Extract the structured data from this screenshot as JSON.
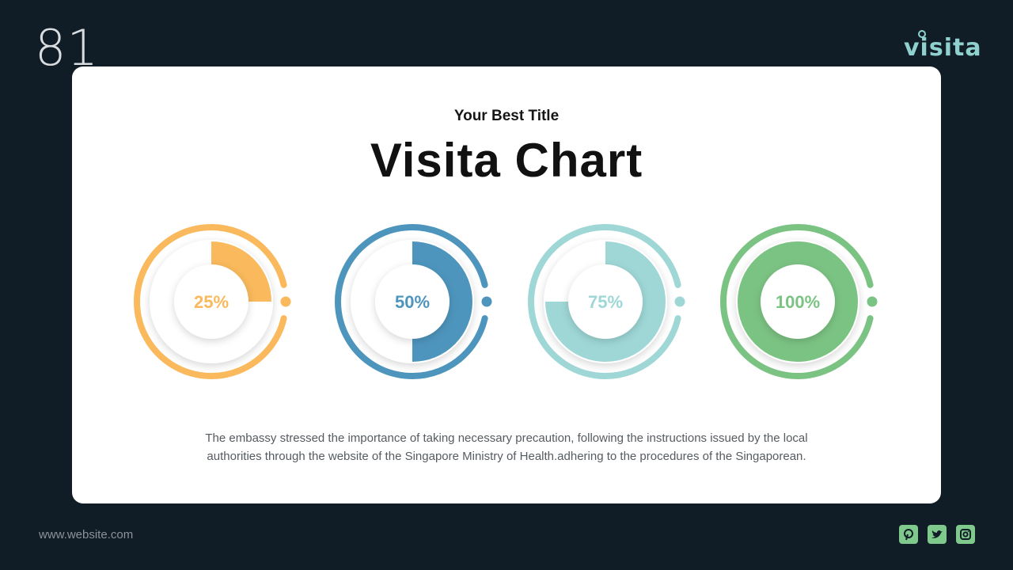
{
  "page": {
    "number": "81",
    "logo_text": "visita",
    "website": "www.website.com"
  },
  "card": {
    "subtitle": "Your Best Title",
    "title": "Visita Chart",
    "description": "The embassy stressed the importance of taking necessary precaution, following the instructions issued by the local authorities through the website of the Singapore Ministry of Health.adhering to the procedures of the Singaporean."
  },
  "socials": [
    "pinterest-icon",
    "twitter-icon",
    "instagram-icon"
  ],
  "colors": {
    "background": "#111d26",
    "accent_teal": "#8fd1cf",
    "social_green": "#7fc98c"
  },
  "chart_data": {
    "type": "pie",
    "items": [
      {
        "value": 25,
        "label": "25%",
        "color": "#f9b95c"
      },
      {
        "value": 50,
        "label": "50%",
        "color": "#4d95bd"
      },
      {
        "value": 75,
        "label": "75%",
        "color": "#9ed7d6"
      },
      {
        "value": 100,
        "label": "100%",
        "color": "#7bc383"
      }
    ]
  }
}
